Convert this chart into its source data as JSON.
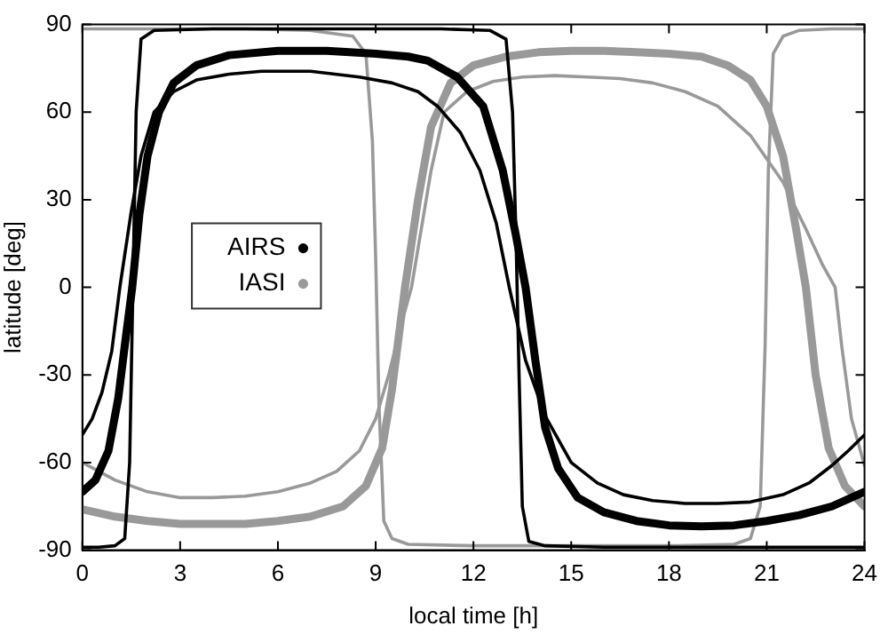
{
  "chart_data": {
    "type": "line",
    "xlabel": "local time [h]",
    "ylabel": "latitude [deg]",
    "xlim": [
      0,
      24
    ],
    "ylim": [
      -90,
      90
    ],
    "xticks": [
      0,
      3,
      6,
      9,
      12,
      15,
      18,
      21,
      24
    ],
    "yticks": [
      -90,
      -60,
      -30,
      0,
      30,
      60,
      90
    ],
    "grid": false,
    "legend": "left",
    "marker": "none",
    "line_style": "solid",
    "series": [
      {
        "color": "#000000",
        "x": [
          0,
          0.3,
          0.6,
          0.9,
          1.15,
          1.5,
          1.8,
          2.2,
          2.8,
          3.5,
          4.5,
          5.5,
          7,
          8.5,
          9.5,
          10.3,
          10.9,
          11.6,
          12.2,
          12.7,
          13.1,
          13.6,
          14.2,
          15,
          15.8,
          16.6,
          17.5,
          18.5,
          19.5,
          20.5,
          21.5,
          22.3,
          23,
          23.5,
          24
        ],
        "values": [
          -50.5,
          -45,
          -36,
          -22,
          0,
          26,
          45,
          60,
          67,
          71,
          73,
          74,
          74,
          72,
          70,
          67,
          62,
          53,
          40,
          22,
          0,
          -25,
          -44,
          -60,
          -67,
          -71,
          -73,
          -74,
          -74,
          -73.5,
          -71,
          -67,
          -61,
          -56,
          -50.5
        ]
      },
      {
        "name": "AIRS",
        "color": "#000000",
        "x": [
          0,
          0.4,
          0.8,
          1.1,
          1.3,
          1.53,
          1.75,
          2,
          2.35,
          2.8,
          3.5,
          4.5,
          6,
          7.5,
          9,
          10,
          10.6,
          11.5,
          12.3,
          12.9,
          13.3,
          13.6,
          13.9,
          14.2,
          14.6,
          15.2,
          16,
          17,
          18,
          19,
          20,
          21,
          22,
          23,
          24
        ],
        "values": [
          -70,
          -66,
          -56,
          -38,
          -20,
          0,
          25,
          45,
          60,
          70,
          76,
          79.5,
          81,
          81,
          80,
          79,
          77.6,
          72,
          62,
          40,
          18,
          0,
          -25,
          -48,
          -62,
          -72,
          -77,
          -80,
          -81.5,
          -81.8,
          -81.5,
          -80,
          -78,
          -75,
          -70
        ]
      },
      {
        "color": "#000000",
        "x": [
          0,
          0.5,
          1,
          1.3,
          1.45,
          1.55,
          1.65,
          1.8,
          2.2,
          4,
          8,
          11,
          12.5,
          13,
          13.2,
          13.3,
          13.4,
          13.5,
          13.7,
          14.2,
          16,
          20,
          23,
          24
        ],
        "values": [
          -89,
          -89,
          -88.5,
          -86,
          -60,
          0,
          60,
          85,
          88,
          88.5,
          88.5,
          88.5,
          88,
          85,
          60,
          20,
          -30,
          -75,
          -87,
          -88.5,
          -89,
          -89,
          -89,
          -89
        ]
      },
      {
        "color": "#999999",
        "x": [
          0,
          1,
          2,
          3,
          4,
          5,
          6,
          7,
          7.8,
          8.5,
          9,
          9.4,
          9.8,
          10.1,
          10.4,
          10.7,
          11.1,
          11.8,
          12.6,
          13.5,
          14.5,
          15.5,
          16.5,
          17.5,
          18.5,
          19.5,
          20.5,
          21.5,
          22.2,
          22.7,
          23.1,
          23.3,
          23.6,
          24
        ],
        "values": [
          -60,
          -66,
          -70,
          -72,
          -72,
          -71.5,
          -70,
          -67,
          -63,
          -56,
          -45,
          -30,
          -12,
          0,
          20,
          40,
          60,
          67,
          70.5,
          72,
          72.5,
          72,
          71.5,
          70,
          67,
          62,
          52,
          36,
          20,
          8,
          0,
          -20,
          -45,
          -61
        ]
      },
      {
        "name": "IASI",
        "color": "#999999",
        "x": [
          0,
          1,
          2,
          3,
          4,
          5,
          6,
          7,
          8,
          8.7,
          9.2,
          9.5,
          9.9,
          10.3,
          10.7,
          11.3,
          12,
          13,
          14,
          15,
          16,
          17,
          18,
          19,
          19.8,
          20.5,
          21,
          21.5,
          21.9,
          22.2,
          22.5,
          22.9,
          23.4,
          24
        ],
        "values": [
          -76,
          -78.5,
          -80,
          -81,
          -81,
          -81,
          -80,
          -78.5,
          -75,
          -68,
          -55,
          -35,
          0,
          30,
          55,
          70,
          76,
          79,
          80.5,
          81,
          81,
          80.5,
          80,
          79,
          76,
          71,
          62,
          45,
          20,
          0,
          -30,
          -55,
          -68,
          -75
        ]
      },
      {
        "color": "#999999",
        "x": [
          0,
          2,
          5,
          7,
          8.3,
          8.7,
          8.9,
          9,
          9.1,
          9.25,
          9.5,
          10,
          12,
          15,
          18,
          20,
          20.5,
          20.8,
          20.95,
          21.05,
          21.2,
          21.5,
          22,
          23,
          24
        ],
        "values": [
          88.5,
          88.5,
          88.5,
          88,
          86,
          80,
          50,
          10,
          -40,
          -80,
          -86,
          -88,
          -88.5,
          -88.5,
          -88.5,
          -88,
          -86,
          -75,
          -20,
          40,
          80,
          86,
          88,
          88.5,
          88.5
        ]
      }
    ]
  }
}
